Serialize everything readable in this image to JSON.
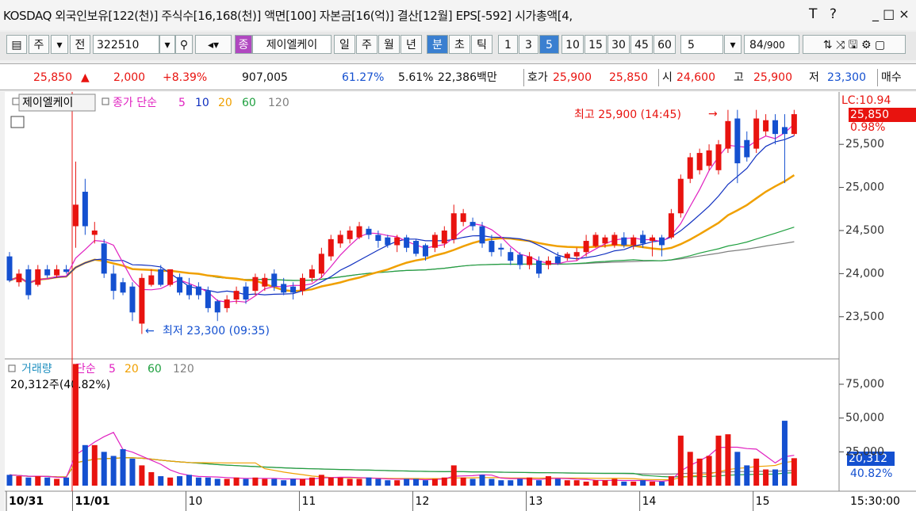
{
  "title_bar": {
    "text": "KOSDAQ 외국인보유[122(천)] 주식수[16,168(천)] 액면[100] 자본금[16(억)] 결산[12월] EPS[-592] 시가총액[4,",
    "controls": [
      "T",
      "?"
    ]
  },
  "toolbar": {
    "market": "주",
    "scope": "전",
    "code": "322510",
    "badge": "종",
    "name": "제이엘케이",
    "periods": [
      "일",
      "주",
      "월",
      "년",
      "분",
      "초",
      "틱"
    ],
    "intervals": [
      "1",
      "3",
      "5",
      "10",
      "15",
      "30",
      "45",
      "60"
    ],
    "unit": "5",
    "count": "84",
    "max": "/900"
  },
  "quote": {
    "price": "25,850",
    "change": "2,000",
    "rate": "+8.39%",
    "volume": "907,005",
    "ratio1": "61.27%",
    "ratio2": "5.61%",
    "amount": "22,386백만",
    "ask_label": "호가",
    "ask": "25,900",
    "bid": "25,850",
    "open_label": "시",
    "open": "24,600",
    "high_label": "고",
    "high": "25,900",
    "low_label": "저",
    "low": "23,300",
    "buy": "매수"
  },
  "chart_data": {
    "type": "candlestick",
    "name_label": "제이엘케이",
    "ma_label": "종가 단순",
    "ma": [
      {
        "period": 5,
        "color": "#e020c0"
      },
      {
        "period": 10,
        "color": "#1030c0"
      },
      {
        "period": 20,
        "color": "#f0a000"
      },
      {
        "period": 60,
        "color": "#20a040"
      },
      {
        "period": 120,
        "color": "#808080"
      }
    ],
    "up_color": "#e8130f",
    "down_color": "#1450d0",
    "ylim": [
      23020,
      26090
    ],
    "yticks": [
      {
        "value": 23500,
        "label": "23,500"
      },
      {
        "value": 24000,
        "label": "24,000"
      },
      {
        "value": 24500,
        "label": "24,500"
      },
      {
        "value": 25000,
        "label": "25,000"
      },
      {
        "value": 25500,
        "label": "25,500"
      }
    ],
    "lc": "LC:10.94",
    "last_price": "25,850",
    "last_rate": "0.98%",
    "high_note": "최고 25,900 (14:45)",
    "low_note": "최저 23,300 (09:35)",
    "time_label": "15:30:00",
    "categories": [
      "10/31",
      null,
      null,
      null,
      null,
      null,
      null,
      "11/01",
      null,
      null,
      null,
      null,
      null,
      null,
      null,
      null,
      null,
      null,
      null,
      "10",
      null,
      null,
      null,
      null,
      null,
      null,
      null,
      null,
      null,
      null,
      null,
      "11",
      null,
      null,
      null,
      null,
      null,
      null,
      null,
      null,
      null,
      null,
      null,
      "12",
      null,
      null,
      null,
      null,
      null,
      null,
      null,
      null,
      null,
      null,
      null,
      "13",
      null,
      null,
      null,
      null,
      null,
      null,
      null,
      null,
      null,
      null,
      null,
      "14",
      null,
      null,
      null,
      null,
      null,
      null,
      null,
      null,
      null,
      null,
      null,
      "15",
      null,
      null,
      null,
      null
    ],
    "candles": [
      [
        24200,
        24250,
        23900,
        23920
      ],
      [
        23900,
        24050,
        23850,
        24000
      ],
      [
        24050,
        24100,
        23700,
        23750
      ],
      [
        23870,
        24100,
        23850,
        24050
      ],
      [
        24050,
        24100,
        23950,
        23980
      ],
      [
        23980,
        24100,
        23950,
        24050
      ],
      [
        24050,
        24100,
        24000,
        24020
      ],
      [
        24550,
        25300,
        24300,
        24800
      ],
      [
        24950,
        25100,
        24450,
        24550
      ],
      [
        24450,
        24600,
        24350,
        24500
      ],
      [
        24350,
        24400,
        23950,
        24000
      ],
      [
        24000,
        24100,
        23700,
        23800
      ],
      [
        23900,
        23950,
        23750,
        23780
      ],
      [
        23850,
        23900,
        23450,
        23550
      ],
      [
        23420,
        24000,
        23300,
        23950
      ],
      [
        23870,
        24050,
        23850,
        23980
      ],
      [
        24050,
        24100,
        23850,
        23870
      ],
      [
        23870,
        24050,
        23850,
        24050
      ],
      [
        23960,
        24000,
        23750,
        23780
      ],
      [
        23870,
        23950,
        23700,
        23750
      ],
      [
        23850,
        23900,
        23700,
        23750
      ],
      [
        23800,
        23850,
        23550,
        23600
      ],
      [
        23680,
        23700,
        23450,
        23550
      ],
      [
        23600,
        23750,
        23550,
        23700
      ],
      [
        23700,
        23850,
        23650,
        23800
      ],
      [
        23850,
        23900,
        23650,
        23700
      ],
      [
        23800,
        24000,
        23750,
        23960
      ],
      [
        23850,
        24000,
        23800,
        23950
      ],
      [
        24000,
        24050,
        23800,
        23850
      ],
      [
        23880,
        23950,
        23750,
        23780
      ],
      [
        23850,
        23900,
        23700,
        23780
      ],
      [
        23800,
        24000,
        23750,
        23950
      ],
      [
        23950,
        24100,
        23900,
        24050
      ],
      [
        24000,
        24300,
        23950,
        24230
      ],
      [
        24200,
        24450,
        24150,
        24400
      ],
      [
        24350,
        24500,
        24300,
        24450
      ],
      [
        24400,
        24550,
        24350,
        24500
      ],
      [
        24420,
        24600,
        24400,
        24550
      ],
      [
        24520,
        24550,
        24400,
        24450
      ],
      [
        24450,
        24500,
        24300,
        24380
      ],
      [
        24420,
        24450,
        24300,
        24330
      ],
      [
        24330,
        24450,
        24250,
        24420
      ],
      [
        24420,
        24450,
        24250,
        24300
      ],
      [
        24380,
        24400,
        24200,
        24230
      ],
      [
        24330,
        24350,
        24150,
        24200
      ],
      [
        24300,
        24480,
        24250,
        24450
      ],
      [
        24350,
        24550,
        24300,
        24500
      ],
      [
        24400,
        24800,
        24350,
        24700
      ],
      [
        24600,
        24750,
        24550,
        24700
      ],
      [
        24600,
        24650,
        24500,
        24550
      ],
      [
        24550,
        24600,
        24300,
        24350
      ],
      [
        24380,
        24450,
        24200,
        24250
      ],
      [
        24300,
        24350,
        24200,
        24280
      ],
      [
        24250,
        24300,
        24100,
        24150
      ],
      [
        24220,
        24250,
        24050,
        24100
      ],
      [
        24100,
        24250,
        24050,
        24200
      ],
      [
        24150,
        24200,
        23950,
        24000
      ],
      [
        24100,
        24200,
        24050,
        24150
      ],
      [
        24200,
        24250,
        24100,
        24120
      ],
      [
        24180,
        24250,
        24150,
        24230
      ],
      [
        24200,
        24300,
        24150,
        24250
      ],
      [
        24250,
        24450,
        24200,
        24380
      ],
      [
        24320,
        24480,
        24300,
        24450
      ],
      [
        24350,
        24450,
        24300,
        24420
      ],
      [
        24330,
        24480,
        24300,
        24450
      ],
      [
        24420,
        24480,
        24300,
        24330
      ],
      [
        24330,
        24450,
        24280,
        24420
      ],
      [
        24450,
        24500,
        24300,
        24350
      ],
      [
        24380,
        24450,
        24200,
        24420
      ],
      [
        24420,
        24450,
        24200,
        24330
      ],
      [
        24420,
        24750,
        24400,
        24700
      ],
      [
        24700,
        25150,
        24650,
        25100
      ],
      [
        25100,
        25400,
        25050,
        25350
      ],
      [
        25200,
        25450,
        25150,
        25400
      ],
      [
        25250,
        25500,
        25200,
        25430
      ],
      [
        25200,
        25550,
        25150,
        25500
      ],
      [
        25450,
        25900,
        25400,
        25770
      ],
      [
        25800,
        25900,
        25050,
        25280
      ],
      [
        25550,
        25650,
        25300,
        25350
      ],
      [
        25450,
        25900,
        25400,
        25800
      ],
      [
        25650,
        25850,
        25600,
        25780
      ],
      [
        25780,
        25850,
        25500,
        25620
      ],
      [
        25700,
        25850,
        25050,
        25620
      ],
      [
        25620,
        25900,
        25600,
        25850
      ]
    ],
    "volume": {
      "label": "거래량",
      "ma_label": "단순",
      "ma": [
        {
          "period": 5,
          "color": "#e020c0"
        },
        {
          "period": 20,
          "color": "#f0a000"
        },
        {
          "period": 60,
          "color": "#20a040"
        },
        {
          "period": 120,
          "color": "#808080"
        }
      ],
      "info": "20,312주(40.82%)",
      "last_label": "20,312",
      "last_rate": "40.82%",
      "ylim": [
        0,
        92000
      ],
      "yticks": [
        {
          "value": 25000,
          "label": "25,000"
        },
        {
          "value": 50000,
          "label": "50,000"
        },
        {
          "value": 75000,
          "label": "75,000"
        }
      ],
      "values": [
        8000,
        7000,
        6000,
        7000,
        6000,
        5000,
        6000,
        90000,
        30000,
        30000,
        25000,
        22000,
        27000,
        20000,
        15000,
        10000,
        7000,
        6000,
        7000,
        8000,
        6000,
        6000,
        5000,
        5000,
        6000,
        5000,
        6000,
        5000,
        5000,
        4000,
        5000,
        5000,
        6000,
        8000,
        6000,
        6000,
        5000,
        5000,
        6000,
        5000,
        4000,
        4000,
        5000,
        5000,
        4000,
        5000,
        6000,
        15000,
        6000,
        5000,
        8000,
        5000,
        4000,
        4000,
        5000,
        6000,
        4000,
        7000,
        5000,
        4000,
        4000,
        3000,
        4000,
        4000,
        5000,
        3000,
        3000,
        4000,
        3000,
        3000,
        7000,
        37000,
        25000,
        20000,
        22000,
        37000,
        38000,
        25000,
        15000,
        20000,
        12000,
        12000,
        48000,
        20312
      ]
    }
  }
}
